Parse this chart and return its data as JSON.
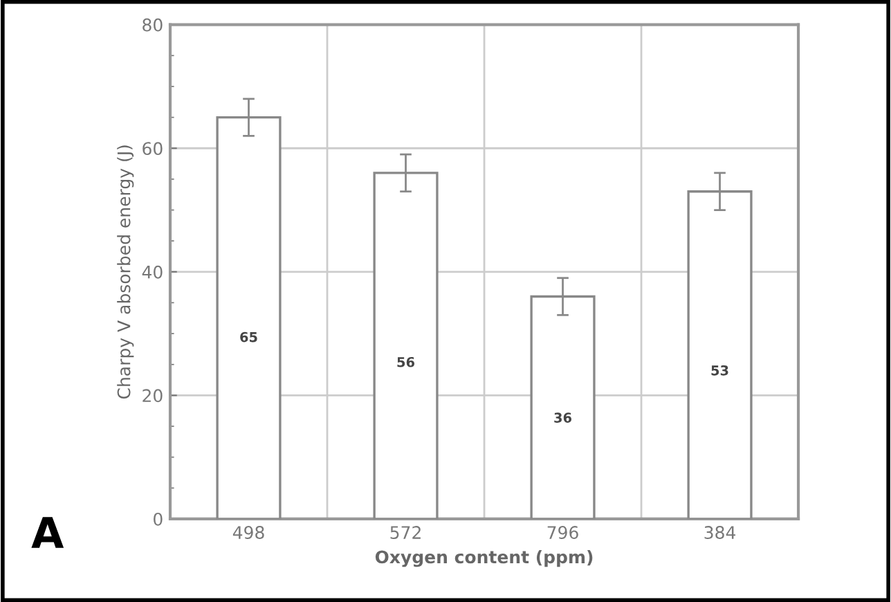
{
  "chart_data": {
    "type": "bar",
    "xlabel": "Oxygen content (ppm)",
    "ylabel": "Charpy V absorbed energy (J)",
    "categories": [
      "498",
      "572",
      "796",
      "384"
    ],
    "values": [
      65,
      56,
      36,
      53
    ],
    "errors": [
      3,
      3,
      3,
      3
    ],
    "color": "#ffffff",
    "data_labels": true,
    "ylim": [
      0,
      80
    ],
    "yticks": [
      0,
      20,
      40,
      60,
      80
    ],
    "grid": true,
    "annotations": [
      "A"
    ]
  }
}
